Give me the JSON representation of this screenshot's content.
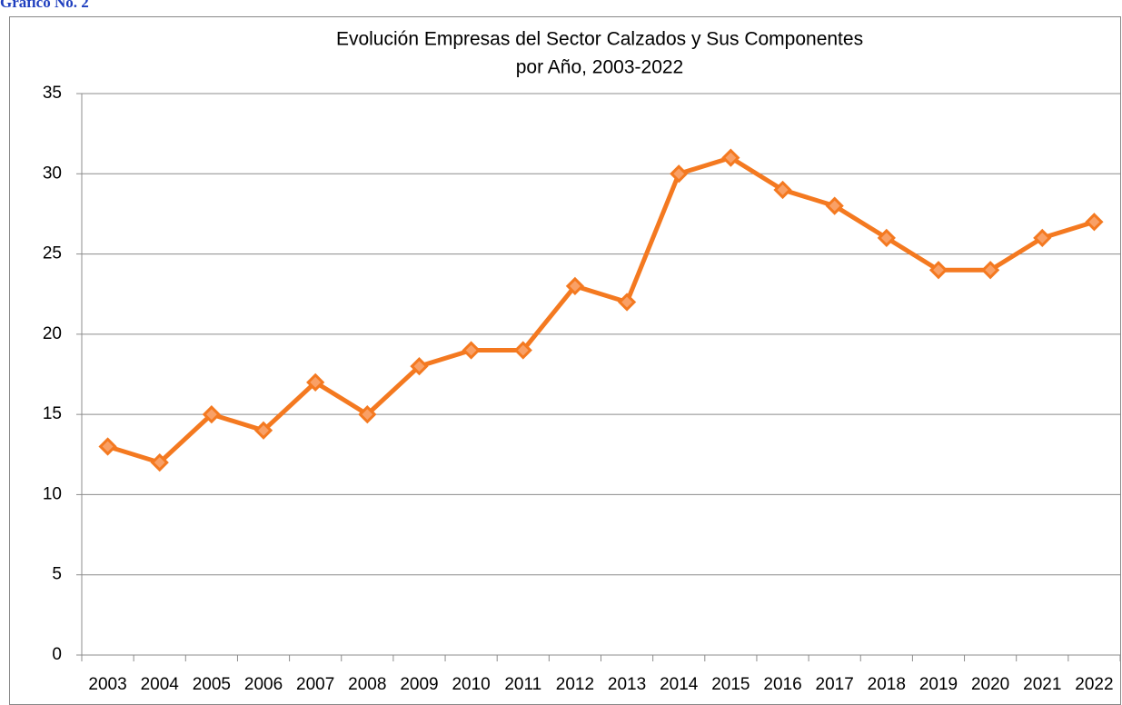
{
  "caption": "Gráfico No. 2",
  "chart_data": {
    "type": "line",
    "title": [
      "Evolución Empresas del Sector Calzados y Sus Componentes",
      "por Año, 2003-2022"
    ],
    "categories": [
      "2003",
      "2004",
      "2005",
      "2006",
      "2007",
      "2008",
      "2009",
      "2010",
      "2011",
      "2012",
      "2013",
      "2014",
      "2015",
      "2016",
      "2017",
      "2018",
      "2019",
      "2020",
      "2021",
      "2022"
    ],
    "series": [
      {
        "name": "Empresas",
        "color": "#f47920",
        "values": [
          13,
          12,
          15,
          14,
          17,
          15,
          18,
          19,
          19,
          23,
          22,
          30,
          31,
          29,
          28,
          26,
          24,
          24,
          26,
          27
        ]
      }
    ],
    "ylim": [
      0,
      35
    ],
    "yticks": [
      0,
      5,
      10,
      15,
      20,
      25,
      30,
      35
    ],
    "grid": true
  }
}
